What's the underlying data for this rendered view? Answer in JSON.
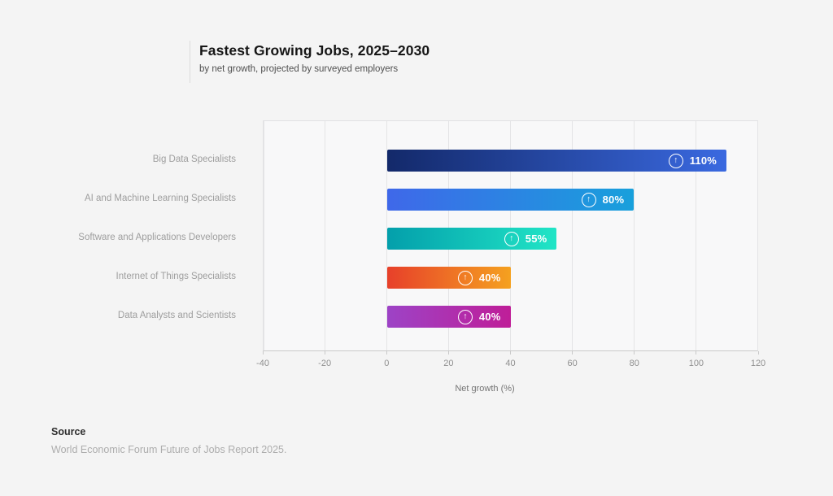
{
  "header": {
    "title": "Fastest Growing Jobs, 2025–2030",
    "subtitle": "by net growth, projected by surveyed employers"
  },
  "chart_data": {
    "type": "bar",
    "orientation": "horizontal",
    "title": "Fastest Growing Jobs, 2025–2030",
    "subtitle": "by net growth, projected by surveyed employers",
    "categories": [
      "Big Data Specialists",
      "AI and Machine Learning Specialists",
      "Software and Applications Developers",
      "Internet of Things Specialists",
      "Data Analysts and Scientists"
    ],
    "values": [
      110,
      80,
      55,
      40,
      40
    ],
    "value_labels": [
      "110%",
      "80%",
      "55%",
      "40%",
      "40%"
    ],
    "bar_icon": "up-arrow",
    "bar_icon_glyph": "↑",
    "bar_gradients": [
      [
        "#13296a",
        "#3a69e0"
      ],
      [
        "#3f68e9",
        "#18a0dc"
      ],
      [
        "#039fab",
        "#21e5c6"
      ],
      [
        "#e7402a",
        "#f5a120"
      ],
      [
        "#9d43c6",
        "#bf1e98"
      ]
    ],
    "xlabel": "Net growth (%)",
    "xlim": [
      -40,
      120
    ],
    "xticks": [
      -40,
      -20,
      0,
      20,
      40,
      60,
      80,
      100,
      120
    ],
    "grid": true,
    "legend": "none"
  },
  "source": {
    "heading": "Source",
    "text": "World Economic Forum Future of Jobs Report 2025."
  },
  "colors": {
    "page_background": "#f4f4f4",
    "plot_background": "#f8f8f9",
    "gridline": "#e4e4e6",
    "axis_line": "#c9c9c9",
    "title_text": "#161616",
    "subtitle_text": "#4f4f4f",
    "category_label_text": "#9e9e9e",
    "tick_label_text": "#8f8f8f",
    "bar_value_text": "#ffffff",
    "source_heading_text": "#2e2e2e",
    "source_text": "#adadad"
  }
}
